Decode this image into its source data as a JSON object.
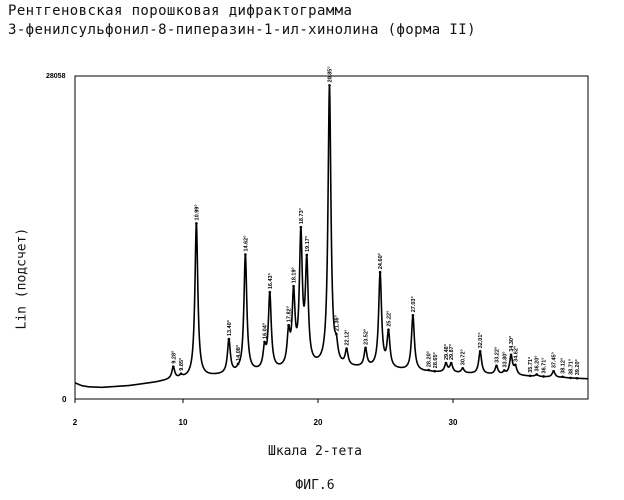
{
  "figure": {
    "title_line1": "Рентгеновская порошковая дифрактограмма",
    "title_line2": "3-фенилсульфонил-8-пиперазин-1-ил-хинолина (форма II)",
    "caption": "ФИГ.6"
  },
  "chart_data": {
    "type": "line",
    "xlabel": "Шкала 2-тета",
    "ylabel": "Lin (подсчет)",
    "xlim": [
      2,
      40
    ],
    "ylim": [
      0,
      28058
    ],
    "y_ticks": [
      "0",
      "28058"
    ],
    "x_ticks": [
      2,
      10,
      20,
      30
    ],
    "grid": false,
    "baseline": [
      [
        2,
        1400
      ],
      [
        2.5,
        1150
      ],
      [
        3,
        1050
      ],
      [
        4,
        1000
      ],
      [
        6,
        1150
      ],
      [
        8,
        1450
      ],
      [
        9,
        1650
      ],
      [
        10,
        1750
      ],
      [
        13,
        2050
      ],
      [
        16,
        2350
      ],
      [
        20,
        2700
      ],
      [
        24,
        2650
      ],
      [
        28,
        2350
      ],
      [
        32,
        2150
      ],
      [
        36,
        1950
      ],
      [
        40,
        1750
      ]
    ],
    "peaks": [
      {
        "x": 9.28,
        "y": 2700,
        "label": "9.28°"
      },
      {
        "x": 9.85,
        "y": 1950,
        "label": "9.85°"
      },
      {
        "x": 10.99,
        "y": 15200,
        "label": "10.99°"
      },
      {
        "x": 13.4,
        "y": 5000,
        "label": "13.40°"
      },
      {
        "x": 14.08,
        "y": 2300,
        "label": "14.08°"
      },
      {
        "x": 14.62,
        "y": 12400,
        "label": "14.62°"
      },
      {
        "x": 16.04,
        "y": 4100,
        "label": "16.04°"
      },
      {
        "x": 16.43,
        "y": 8900,
        "label": "16.43°"
      },
      {
        "x": 17.82,
        "y": 5300,
        "label": "17.82°"
      },
      {
        "x": 18.19,
        "y": 8600,
        "label": "18.19°"
      },
      {
        "x": 18.73,
        "y": 13700,
        "label": "18.73°"
      },
      {
        "x": 19.17,
        "y": 11300,
        "label": "19.17°"
      },
      {
        "x": 20.85,
        "y": 27000,
        "label": "20.85°"
      },
      {
        "x": 21.36,
        "y": 4000,
        "label": "21.36°"
      },
      {
        "x": 22.12,
        "y": 4000,
        "label": "22.12°"
      },
      {
        "x": 23.52,
        "y": 4200,
        "label": "23.52°"
      },
      {
        "x": 24.6,
        "y": 10800,
        "label": "24.60°"
      },
      {
        "x": 25.22,
        "y": 5600,
        "label": "25.22°"
      },
      {
        "x": 27.03,
        "y": 7200,
        "label": "27.03°"
      },
      {
        "x": 28.2,
        "y": 2400,
        "label": "28.20°"
      },
      {
        "x": 28.65,
        "y": 2100,
        "label": "28.65°"
      },
      {
        "x": 29.48,
        "y": 3000,
        "label": "29.48°"
      },
      {
        "x": 29.87,
        "y": 3000,
        "label": "29.87°"
      },
      {
        "x": 30.72,
        "y": 2600,
        "label": "30.72°"
      },
      {
        "x": 32.01,
        "y": 4100,
        "label": "32.01°"
      },
      {
        "x": 33.22,
        "y": 2800,
        "label": "33.22°"
      },
      {
        "x": 33.8,
        "y": 2300,
        "label": "33.80°"
      },
      {
        "x": 34.3,
        "y": 3700,
        "label": "34.30°"
      },
      {
        "x": 34.62,
        "y": 2700,
        "label": "34.62°"
      },
      {
        "x": 35.71,
        "y": 1900,
        "label": "35.71°"
      },
      {
        "x": 36.2,
        "y": 2100,
        "label": "36.20°"
      },
      {
        "x": 36.71,
        "y": 1900,
        "label": "36.71°"
      },
      {
        "x": 37.45,
        "y": 2400,
        "label": "37.45°"
      },
      {
        "x": 38.12,
        "y": 1900,
        "label": "38.12°"
      },
      {
        "x": 38.71,
        "y": 1800,
        "label": "38.71°"
      },
      {
        "x": 39.2,
        "y": 1700,
        "label": "39.20°"
      }
    ]
  }
}
